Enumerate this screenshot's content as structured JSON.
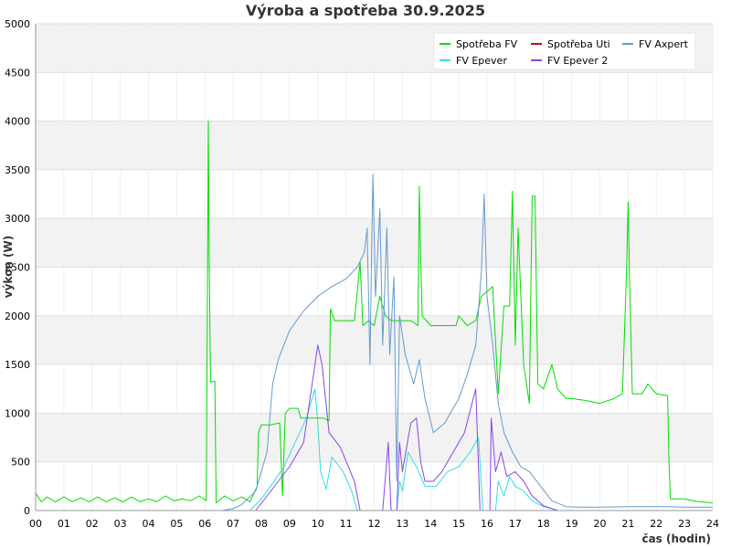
{
  "chart_data": {
    "type": "line",
    "title": "Výroba a spotřeba 30.9.2025",
    "xlabel": "čas (hodin)",
    "ylabel": "výkon (W)",
    "xlim": [
      0,
      24
    ],
    "ylim": [
      0,
      5000
    ],
    "x_ticks": [
      0,
      1,
      2,
      3,
      4,
      5,
      6,
      7,
      8,
      9,
      10,
      11,
      12,
      13,
      14,
      15,
      16,
      17,
      18,
      19,
      20,
      21,
      22,
      23,
      24
    ],
    "x_tick_labels": [
      "00",
      "01",
      "02",
      "03",
      "04",
      "05",
      "06",
      "07",
      "08",
      "09",
      "10",
      "11",
      "12",
      "13",
      "14",
      "15",
      "16",
      "17",
      "18",
      "19",
      "20",
      "21",
      "22",
      "23",
      "24"
    ],
    "y_ticks": [
      0,
      500,
      1000,
      1500,
      2000,
      2500,
      3000,
      3500,
      4000,
      4500,
      5000
    ],
    "grid": true,
    "legend_position": "top-right",
    "series": [
      {
        "name": "Spotřeba FV",
        "color": "#00dd00",
        "points": [
          [
            0,
            180
          ],
          [
            0.2,
            90
          ],
          [
            0.4,
            140
          ],
          [
            0.7,
            90
          ],
          [
            1.0,
            140
          ],
          [
            1.3,
            90
          ],
          [
            1.6,
            130
          ],
          [
            1.9,
            90
          ],
          [
            2.2,
            140
          ],
          [
            2.5,
            90
          ],
          [
            2.8,
            130
          ],
          [
            3.1,
            90
          ],
          [
            3.4,
            140
          ],
          [
            3.7,
            90
          ],
          [
            4.0,
            120
          ],
          [
            4.3,
            90
          ],
          [
            4.6,
            150
          ],
          [
            4.9,
            100
          ],
          [
            5.2,
            120
          ],
          [
            5.5,
            100
          ],
          [
            5.8,
            150
          ],
          [
            6.05,
            100
          ],
          [
            6.12,
            4000
          ],
          [
            6.15,
            2650
          ],
          [
            6.2,
            1320
          ],
          [
            6.35,
            1330
          ],
          [
            6.4,
            80
          ],
          [
            6.7,
            150
          ],
          [
            7.0,
            100
          ],
          [
            7.3,
            140
          ],
          [
            7.6,
            90
          ],
          [
            7.85,
            250
          ],
          [
            7.9,
            800
          ],
          [
            8.0,
            880
          ],
          [
            8.3,
            880
          ],
          [
            8.65,
            900
          ],
          [
            8.75,
            150
          ],
          [
            8.85,
            1000
          ],
          [
            9.0,
            1050
          ],
          [
            9.3,
            1050
          ],
          [
            9.4,
            950
          ],
          [
            9.7,
            950
          ],
          [
            10.2,
            950
          ],
          [
            10.4,
            920
          ],
          [
            10.45,
            2070
          ],
          [
            10.6,
            1950
          ],
          [
            11.0,
            1950
          ],
          [
            11.3,
            1950
          ],
          [
            11.5,
            2550
          ],
          [
            11.6,
            1900
          ],
          [
            11.8,
            1950
          ],
          [
            12.0,
            1900
          ],
          [
            12.2,
            2200
          ],
          [
            12.4,
            2000
          ],
          [
            12.6,
            1950
          ],
          [
            13.0,
            1950
          ],
          [
            13.3,
            1950
          ],
          [
            13.55,
            1900
          ],
          [
            13.6,
            3330
          ],
          [
            13.65,
            2600
          ],
          [
            13.7,
            2000
          ],
          [
            14.0,
            1900
          ],
          [
            14.5,
            1900
          ],
          [
            14.9,
            1900
          ],
          [
            15.0,
            2000
          ],
          [
            15.3,
            1900
          ],
          [
            15.6,
            1950
          ],
          [
            15.8,
            2200
          ],
          [
            16.2,
            2300
          ],
          [
            16.4,
            1200
          ],
          [
            16.6,
            2100
          ],
          [
            16.8,
            2100
          ],
          [
            16.9,
            3280
          ],
          [
            17.0,
            1700
          ],
          [
            17.1,
            2900
          ],
          [
            17.2,
            2200
          ],
          [
            17.3,
            1500
          ],
          [
            17.5,
            1100
          ],
          [
            17.6,
            3230
          ],
          [
            17.7,
            3230
          ],
          [
            17.8,
            1300
          ],
          [
            18.0,
            1250
          ],
          [
            18.3,
            1500
          ],
          [
            18.5,
            1250
          ],
          [
            18.8,
            1150
          ],
          [
            19.0,
            1150
          ],
          [
            19.5,
            1130
          ],
          [
            20.0,
            1100
          ],
          [
            20.5,
            1150
          ],
          [
            20.8,
            1200
          ],
          [
            20.95,
            2500
          ],
          [
            21.0,
            3170
          ],
          [
            21.05,
            2400
          ],
          [
            21.15,
            1200
          ],
          [
            21.5,
            1200
          ],
          [
            21.7,
            1300
          ],
          [
            22.0,
            1200
          ],
          [
            22.4,
            1180
          ],
          [
            22.45,
            500
          ],
          [
            22.5,
            120
          ],
          [
            23.0,
            120
          ],
          [
            23.5,
            90
          ],
          [
            24.0,
            80
          ]
        ]
      },
      {
        "name": "Spotřeba Uti",
        "color": "#cc0000",
        "points": []
      },
      {
        "name": "FV Axpert",
        "color": "#6699cc",
        "points": [
          [
            6.6,
            0
          ],
          [
            7.0,
            20
          ],
          [
            7.3,
            60
          ],
          [
            7.8,
            200
          ],
          [
            8.2,
            600
          ],
          [
            8.4,
            1300
          ],
          [
            8.6,
            1550
          ],
          [
            9.0,
            1850
          ],
          [
            9.5,
            2050
          ],
          [
            10.0,
            2200
          ],
          [
            10.5,
            2300
          ],
          [
            11.0,
            2380
          ],
          [
            11.4,
            2500
          ],
          [
            11.65,
            2650
          ],
          [
            11.75,
            2900
          ],
          [
            11.85,
            1500
          ],
          [
            11.95,
            3450
          ],
          [
            12.05,
            2200
          ],
          [
            12.2,
            3100
          ],
          [
            12.3,
            1700
          ],
          [
            12.45,
            2900
          ],
          [
            12.55,
            1600
          ],
          [
            12.7,
            2400
          ],
          [
            12.8,
            300
          ],
          [
            12.9,
            2000
          ],
          [
            13.1,
            1600
          ],
          [
            13.4,
            1300
          ],
          [
            13.6,
            1550
          ],
          [
            13.8,
            1150
          ],
          [
            14.1,
            800
          ],
          [
            14.5,
            900
          ],
          [
            15.0,
            1150
          ],
          [
            15.3,
            1400
          ],
          [
            15.6,
            1700
          ],
          [
            15.8,
            2450
          ],
          [
            15.9,
            3250
          ],
          [
            16.0,
            2200
          ],
          [
            16.2,
            1700
          ],
          [
            16.4,
            1100
          ],
          [
            16.6,
            800
          ],
          [
            16.9,
            600
          ],
          [
            17.2,
            450
          ],
          [
            17.5,
            400
          ],
          [
            17.9,
            250
          ],
          [
            18.3,
            100
          ],
          [
            18.8,
            40
          ],
          [
            19.3,
            35
          ],
          [
            20.0,
            35
          ],
          [
            21.0,
            40
          ],
          [
            22.0,
            40
          ],
          [
            22.4,
            40
          ],
          [
            23.0,
            35
          ],
          [
            24.0,
            35
          ]
        ]
      },
      {
        "name": "FV Epever",
        "color": "#33dddd",
        "points": [
          [
            7.6,
            0
          ],
          [
            8.0,
            120
          ],
          [
            8.4,
            280
          ],
          [
            8.8,
            450
          ],
          [
            9.2,
            700
          ],
          [
            9.6,
            950
          ],
          [
            9.9,
            1250
          ],
          [
            10.0,
            900
          ],
          [
            10.1,
            400
          ],
          [
            10.3,
            220
          ],
          [
            10.5,
            550
          ],
          [
            10.9,
            400
          ],
          [
            11.2,
            200
          ],
          [
            11.4,
            0
          ],
          [
            12.8,
            0
          ],
          [
            12.9,
            300
          ],
          [
            13.0,
            200
          ],
          [
            13.2,
            600
          ],
          [
            13.5,
            450
          ],
          [
            13.8,
            250
          ],
          [
            14.2,
            250
          ],
          [
            14.6,
            400
          ],
          [
            15.0,
            450
          ],
          [
            15.4,
            600
          ],
          [
            15.7,
            750
          ],
          [
            15.85,
            0
          ],
          [
            16.3,
            0
          ],
          [
            16.4,
            300
          ],
          [
            16.6,
            150
          ],
          [
            16.8,
            350
          ],
          [
            17.0,
            250
          ],
          [
            17.3,
            200
          ],
          [
            17.6,
            100
          ],
          [
            18.0,
            40
          ],
          [
            18.5,
            0
          ]
        ]
      },
      {
        "name": "FV Epever 2",
        "color": "#8844ee",
        "points": [
          [
            7.8,
            0
          ],
          [
            8.2,
            150
          ],
          [
            8.6,
            300
          ],
          [
            9.0,
            450
          ],
          [
            9.5,
            700
          ],
          [
            10.0,
            1700
          ],
          [
            10.15,
            1500
          ],
          [
            10.4,
            800
          ],
          [
            10.8,
            650
          ],
          [
            11.3,
            300
          ],
          [
            11.5,
            0
          ],
          [
            12.3,
            0
          ],
          [
            12.5,
            700
          ],
          [
            12.6,
            0
          ],
          [
            12.8,
            0
          ],
          [
            12.9,
            700
          ],
          [
            13.0,
            400
          ],
          [
            13.3,
            900
          ],
          [
            13.5,
            950
          ],
          [
            13.65,
            500
          ],
          [
            13.8,
            300
          ],
          [
            14.1,
            300
          ],
          [
            14.4,
            400
          ],
          [
            14.8,
            600
          ],
          [
            15.2,
            800
          ],
          [
            15.6,
            1250
          ],
          [
            15.75,
            0
          ],
          [
            16.1,
            0
          ],
          [
            16.15,
            950
          ],
          [
            16.3,
            400
          ],
          [
            16.5,
            600
          ],
          [
            16.7,
            350
          ],
          [
            17.0,
            400
          ],
          [
            17.3,
            300
          ],
          [
            17.6,
            150
          ],
          [
            18.0,
            50
          ],
          [
            18.5,
            0
          ]
        ]
      }
    ]
  }
}
